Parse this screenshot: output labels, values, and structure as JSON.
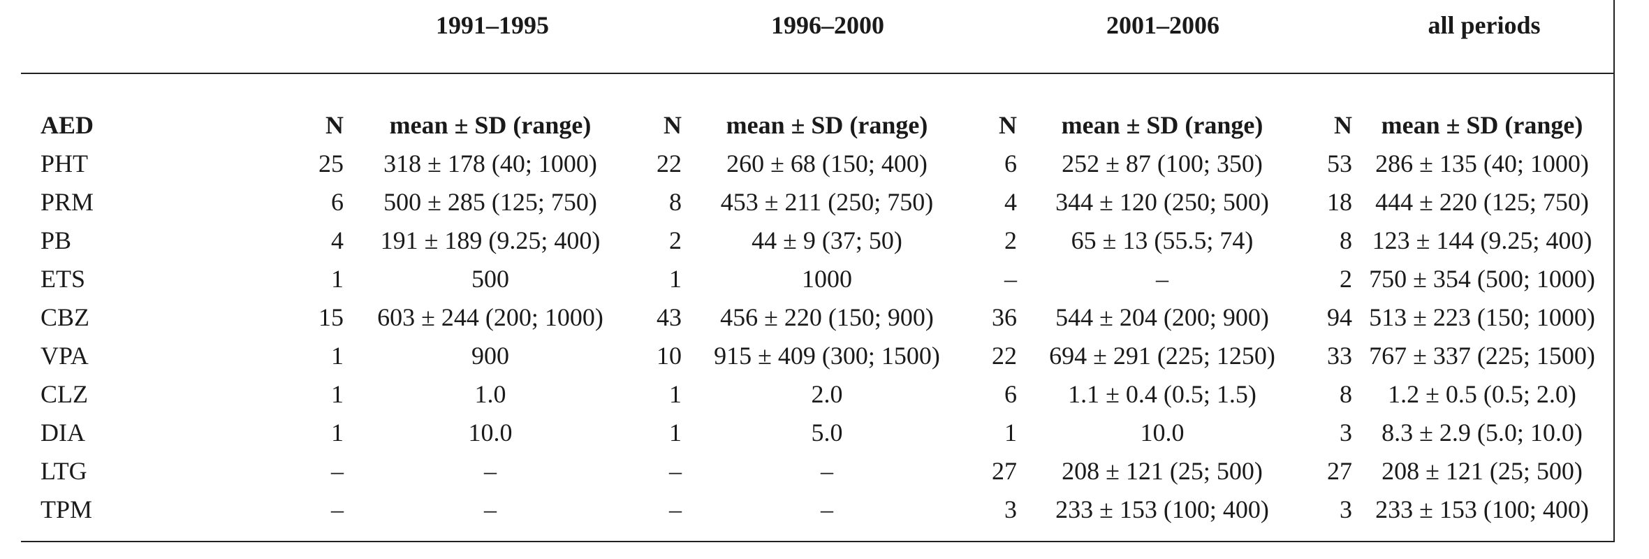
{
  "periods": [
    "1991–1995",
    "1996–2000",
    "2001–2006",
    "all periods"
  ],
  "header": {
    "aed": "AED",
    "n": "N",
    "mean": "mean ± SD (range)"
  },
  "rows": [
    {
      "aed": "PHT",
      "values": [
        [
          "25",
          "318 ± 178 (40; 1000)"
        ],
        [
          "22",
          "260 ± 68 (150; 400)"
        ],
        [
          "6",
          "252 ± 87 (100; 350)"
        ],
        [
          "53",
          "286 ± 135 (40; 1000)"
        ]
      ]
    },
    {
      "aed": "PRM",
      "values": [
        [
          "6",
          "500 ± 285 (125; 750)"
        ],
        [
          "8",
          "453 ± 211 (250; 750)"
        ],
        [
          "4",
          "344 ± 120 (250; 500)"
        ],
        [
          "18",
          "444 ± 220 (125; 750)"
        ]
      ]
    },
    {
      "aed": "PB",
      "values": [
        [
          "4",
          "191 ± 189 (9.25; 400)"
        ],
        [
          "2",
          "44 ± 9 (37; 50)"
        ],
        [
          "2",
          "65 ± 13 (55.5; 74)"
        ],
        [
          "8",
          "123 ± 144 (9.25; 400)"
        ]
      ]
    },
    {
      "aed": "ETS",
      "values": [
        [
          "1",
          "500"
        ],
        [
          "1",
          "1000"
        ],
        [
          "–",
          "–"
        ],
        [
          "2",
          "750 ± 354 (500; 1000)"
        ]
      ]
    },
    {
      "aed": "CBZ",
      "values": [
        [
          "15",
          "603 ± 244 (200; 1000)"
        ],
        [
          "43",
          "456 ± 220 (150; 900)"
        ],
        [
          "36",
          "544 ± 204 (200; 900)"
        ],
        [
          "94",
          "513 ± 223 (150; 1000)"
        ]
      ]
    },
    {
      "aed": "VPA",
      "values": [
        [
          "1",
          "900"
        ],
        [
          "10",
          "915 ± 409 (300; 1500)"
        ],
        [
          "22",
          "694 ± 291 (225; 1250)"
        ],
        [
          "33",
          "767 ± 337 (225; 1500)"
        ]
      ]
    },
    {
      "aed": "CLZ",
      "values": [
        [
          "1",
          "1.0"
        ],
        [
          "1",
          "2.0"
        ],
        [
          "6",
          "1.1 ± 0.4 (0.5; 1.5)"
        ],
        [
          "8",
          "1.2 ± 0.5 (0.5; 2.0)"
        ]
      ]
    },
    {
      "aed": "DIA",
      "values": [
        [
          "1",
          "10.0"
        ],
        [
          "1",
          "5.0"
        ],
        [
          "1",
          "10.0"
        ],
        [
          "3",
          "8.3 ± 2.9 (5.0; 10.0)"
        ]
      ]
    },
    {
      "aed": "LTG",
      "values": [
        [
          "–",
          "–"
        ],
        [
          "–",
          "–"
        ],
        [
          "27",
          "208 ± 121 (25; 500)"
        ],
        [
          "27",
          "208 ± 121 (25; 500)"
        ]
      ]
    },
    {
      "aed": "TPM",
      "values": [
        [
          "–",
          "–"
        ],
        [
          "–",
          "–"
        ],
        [
          "3",
          "233 ± 153 (100; 400)"
        ],
        [
          "3",
          "233 ± 153 (100; 400)"
        ]
      ]
    }
  ]
}
